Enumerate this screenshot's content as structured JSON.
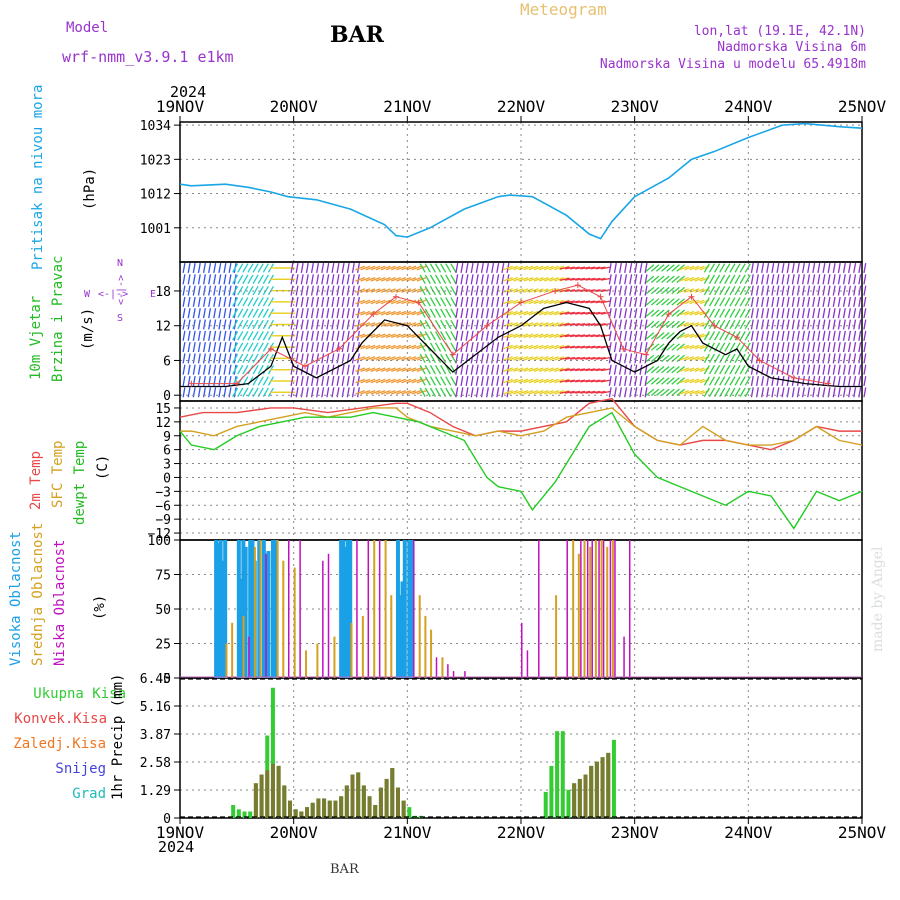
{
  "header": {
    "model_label": "Model",
    "model_name": "wrf-nmm_v3.9.1 e1km",
    "station": "BAR",
    "meteogram_label": "Meteogram",
    "location": "lon,lat (19.1E, 42.1N)",
    "elevation": "Nadmorska Visina 6m",
    "model_elevation": "Nadmorska Visina u modelu 65.4918m",
    "year_top": "2024",
    "year_bottom": "2024",
    "footer_station": "BAR",
    "credit": "made by Angel"
  },
  "colors": {
    "pressure": "#1aa6e6",
    "wind_label": "#22bb22",
    "temp2m": "#e84848",
    "sfc": "#d4a020",
    "dewpt": "#22cc22",
    "cloud_high": "#1aa0e6",
    "cloud_mid": "#d4a020",
    "cloud_low": "#c010c0",
    "total_precip": "#33cc33",
    "conv_precip": "#e84848",
    "frozen_precip": "#ee7722",
    "snow": "#4444dd",
    "graupel": "#22bbbb",
    "label_purple": "#9933cc",
    "meteogram": "#e8c070"
  },
  "chart_data": [
    {
      "type": "line",
      "panel": "pressure",
      "ylabel_a": "Pritisak na nivou mora",
      "ylabel_b": "(hPa)",
      "yticks": [
        "1001",
        "1012",
        "1023",
        "1034"
      ],
      "ylim": [
        990,
        1035
      ],
      "xticks": [
        "19NOV",
        "20NOV",
        "21NOV",
        "22NOV",
        "23NOV",
        "24NOV",
        "25NOV"
      ],
      "series": [
        {
          "x": [
            0,
            0.1,
            0.4,
            0.6,
            0.8,
            0.95,
            1.2,
            1.5,
            1.8,
            1.9,
            2.0,
            2.2,
            2.5,
            2.8,
            2.9,
            3.1,
            3.4,
            3.6,
            3.7,
            3.8,
            4.0,
            4.3,
            4.5,
            4.7,
            5.0,
            5.3,
            5.5,
            5.8,
            6.0
          ],
          "y": [
            1015,
            1014.5,
            1015,
            1014,
            1012.5,
            1011,
            1010,
            1007,
            1002,
            998.5,
            998,
            1001,
            1007,
            1011,
            1011.5,
            1011,
            1005,
            999,
            997.5,
            1003,
            1011,
            1017,
            1023,
            1025.5,
            1030,
            1034,
            1034.5,
            1033.5,
            1033
          ]
        }
      ]
    },
    {
      "type": "wind",
      "panel": "wind",
      "ylabel_a": "10m Vjetar",
      "ylabel_b": "Brzina i Pravac",
      "ylabel_c": "(m/s)",
      "compass_n": "N",
      "compass_s": "S",
      "compass_e": "E",
      "compass_w": "W",
      "compass_mark": "<-|->",
      "yticks": [
        "0",
        "6",
        "12",
        "18"
      ],
      "ylim": [
        -1,
        23
      ],
      "speed_x": [
        0,
        0.4,
        0.6,
        0.8,
        0.9,
        1.0,
        1.2,
        1.5,
        1.6,
        1.7,
        1.8,
        2.0,
        2.1,
        2.2,
        2.3,
        2.4,
        2.6,
        2.8,
        3.0,
        3.2,
        3.4,
        3.6,
        3.7,
        3.8,
        4.0,
        4.2,
        4.3,
        4.4,
        4.5,
        4.6,
        4.8,
        4.9,
        5.0,
        5.2,
        5.5,
        5.8,
        6.0
      ],
      "speed": [
        1.5,
        1.5,
        2,
        5,
        10,
        5,
        3,
        6,
        9,
        11,
        13,
        12,
        10,
        8,
        6,
        4,
        7,
        10,
        12,
        15,
        16,
        15,
        12,
        6,
        4,
        6,
        9,
        11,
        12,
        9,
        7,
        8,
        5,
        3,
        2,
        1.5,
        1.5
      ],
      "gust_x": [
        0.1,
        0.5,
        0.8,
        1.1,
        1.4,
        1.7,
        1.9,
        2.1,
        2.4,
        2.7,
        3.0,
        3.3,
        3.5,
        3.7,
        3.9,
        4.1,
        4.3,
        4.5,
        4.7,
        4.9,
        5.1,
        5.4,
        5.7
      ],
      "gust": [
        2,
        2,
        8,
        5,
        8,
        14,
        17,
        16,
        7,
        12,
        16,
        18,
        19,
        17,
        8,
        7,
        14,
        17,
        12,
        10,
        6,
        3,
        2
      ],
      "arrow_bands": [
        {
          "x0": 0.0,
          "x1": 0.45,
          "dir_deg": 80,
          "hue": "blue"
        },
        {
          "x0": 0.45,
          "x1": 0.8,
          "dir_deg": 60,
          "hue": "cyan"
        },
        {
          "x0": 0.8,
          "x1": 0.95,
          "dir_deg": 0,
          "hue": "yellow"
        },
        {
          "x0": 0.95,
          "x1": 1.55,
          "dir_deg": 260,
          "hue": "purple"
        },
        {
          "x0": 1.55,
          "x1": 2.1,
          "dir_deg": 200,
          "hue": "orange"
        },
        {
          "x0": 2.1,
          "x1": 2.4,
          "dir_deg": 120,
          "hue": "green"
        },
        {
          "x0": 2.4,
          "x1": 2.85,
          "dir_deg": 260,
          "hue": "purple"
        },
        {
          "x0": 2.85,
          "x1": 3.35,
          "dir_deg": 200,
          "hue": "yellow"
        },
        {
          "x0": 3.35,
          "x1": 3.75,
          "dir_deg": 190,
          "hue": "red"
        },
        {
          "x0": 3.75,
          "x1": 4.1,
          "dir_deg": 260,
          "hue": "purple"
        },
        {
          "x0": 4.1,
          "x1": 4.4,
          "dir_deg": 40,
          "hue": "green"
        },
        {
          "x0": 4.4,
          "x1": 4.6,
          "dir_deg": 200,
          "hue": "yellow"
        },
        {
          "x0": 4.6,
          "x1": 5.0,
          "dir_deg": 60,
          "hue": "green"
        },
        {
          "x0": 5.0,
          "x1": 6.0,
          "dir_deg": 260,
          "hue": "purple"
        }
      ]
    },
    {
      "type": "line",
      "panel": "temperature",
      "ylabel_a": "2m Temp",
      "ylabel_b": "SFC Temp",
      "ylabel_c": "dewpt Temp",
      "ylabel_d": "(C)",
      "yticks": [
        "15",
        "12",
        "9",
        "6",
        "3",
        "0",
        "−3",
        "−6",
        "−9",
        "−12"
      ],
      "ylim": [
        -13.5,
        16.5
      ],
      "series": [
        {
          "name": "2m Temp",
          "x": [
            0,
            0.2,
            0.5,
            0.8,
            1.0,
            1.3,
            1.6,
            1.9,
            2.0,
            2.2,
            2.4,
            2.6,
            2.8,
            3.0,
            3.2,
            3.4,
            3.6,
            3.8,
            3.9,
            4.0,
            4.2,
            4.4,
            4.6,
            4.8,
            5.0,
            5.2,
            5.4,
            5.6,
            5.8,
            6.0
          ],
          "y": [
            13,
            14,
            14,
            15,
            15,
            14,
            15,
            16,
            16,
            14,
            11,
            9,
            10,
            10,
            11,
            12,
            16,
            17,
            14,
            11,
            8,
            7,
            8,
            8,
            7,
            6,
            8,
            11,
            10,
            10
          ]
        },
        {
          "name": "SFC Temp",
          "x": [
            0,
            0.1,
            0.3,
            0.5,
            0.7,
            0.9,
            1.1,
            1.3,
            1.5,
            1.7,
            1.9,
            2.0,
            2.2,
            2.4,
            2.6,
            2.8,
            3.0,
            3.2,
            3.4,
            3.6,
            3.8,
            4.0,
            4.2,
            4.4,
            4.6,
            4.8,
            5.0,
            5.2,
            5.4,
            5.6,
            5.8,
            6.0
          ],
          "y": [
            10,
            10,
            9,
            11,
            12,
            13,
            14,
            13,
            14,
            15,
            15,
            13,
            11,
            10,
            9,
            10,
            9,
            10,
            13,
            14,
            15,
            11,
            8,
            7,
            11,
            8,
            7,
            7,
            8,
            11,
            8,
            7
          ]
        },
        {
          "name": "dewpt Temp",
          "x": [
            0,
            0.1,
            0.3,
            0.5,
            0.7,
            0.9,
            1.1,
            1.3,
            1.5,
            1.7,
            1.9,
            2.1,
            2.3,
            2.5,
            2.7,
            2.8,
            3.0,
            3.1,
            3.3,
            3.5,
            3.6,
            3.8,
            4.0,
            4.2,
            4.4,
            4.6,
            4.8,
            5.0,
            5.2,
            5.4,
            5.6,
            5.8,
            6.0
          ],
          "y": [
            10,
            7,
            6,
            9,
            11,
            12,
            13,
            13,
            13,
            14,
            13,
            12,
            10,
            8,
            0,
            -2,
            -3,
            -7,
            -1,
            7,
            11,
            14,
            5,
            0,
            -2,
            -4,
            -6,
            -3,
            -4,
            -11,
            -3,
            -5,
            -3
          ]
        }
      ]
    },
    {
      "type": "bar",
      "panel": "clouds",
      "ylabel_a": "Visoka Oblacnost",
      "ylabel_b": "Srednja Oblacnost",
      "ylabel_c": "Niska Oblacnost",
      "ylabel_d": "(%)",
      "yticks": [
        "0",
        "25",
        "50",
        "75",
        "100"
      ],
      "ylim": [
        0,
        100
      ],
      "series": [
        {
          "name": "Visoka Oblacnost",
          "x": [
            0.3,
            0.32,
            0.34,
            0.36,
            0.38,
            0.5,
            0.52,
            0.54,
            0.56,
            0.6,
            0.62,
            0.64,
            0.68,
            0.72,
            0.76,
            0.8,
            0.82,
            1.4,
            1.42,
            1.44,
            1.46,
            1.48,
            1.9,
            1.92,
            1.94,
            1.96,
            2.0,
            2.02
          ],
          "y": [
            100,
            98,
            100,
            85,
            100,
            100,
            72,
            100,
            95,
            100,
            100,
            85,
            100,
            100,
            92,
            100,
            100,
            100,
            100,
            95,
            100,
            100,
            100,
            60,
            70,
            100,
            100,
            100
          ]
        },
        {
          "name": "Srednja Oblacnost",
          "x": [
            0.4,
            0.45,
            0.55,
            0.65,
            0.7,
            0.85,
            0.9,
            1.0,
            1.1,
            1.2,
            1.35,
            1.5,
            1.6,
            1.7,
            1.8,
            1.85,
            2.1,
            2.15,
            2.2,
            2.3,
            3.3,
            3.45,
            3.5,
            3.55,
            3.6,
            3.65,
            3.7,
            3.75,
            3.8
          ],
          "y": [
            25,
            40,
            45,
            95,
            100,
            100,
            85,
            80,
            20,
            25,
            30,
            40,
            45,
            100,
            100,
            60,
            60,
            45,
            35,
            15,
            60,
            100,
            90,
            100,
            95,
            100,
            100,
            95,
            100
          ]
        },
        {
          "name": "Niska Oblacnost",
          "x": [
            0.6,
            0.75,
            0.95,
            1.05,
            1.25,
            1.3,
            1.55,
            1.65,
            1.75,
            2.05,
            2.25,
            2.35,
            2.4,
            2.5,
            3.0,
            3.05,
            3.15,
            3.4,
            3.52,
            3.58,
            3.62,
            3.68,
            3.72,
            3.78,
            3.82,
            3.9,
            3.95
          ],
          "y": [
            30,
            90,
            100,
            100,
            85,
            90,
            100,
            100,
            100,
            100,
            15,
            10,
            5,
            5,
            40,
            20,
            100,
            100,
            100,
            100,
            100,
            100,
            100,
            100,
            100,
            30,
            100
          ]
        }
      ]
    },
    {
      "type": "bar",
      "panel": "precip",
      "ylabel": "1hr Precip (mm)",
      "legend": [
        "Ukupna Kisa",
        "Konvek.Kisa",
        "Zaledj.Kisa",
        "Snijeg",
        "Grad"
      ],
      "yticks": [
        "0",
        "1.29",
        "2.58",
        "3.87",
        "5.16",
        "6.45"
      ],
      "ylim": [
        0,
        6.45
      ],
      "series": [
        {
          "name": "Ukupna Kisa",
          "x": [
            0.45,
            0.5,
            0.55,
            0.6,
            0.65,
            0.7,
            0.75,
            0.8,
            0.85,
            0.9,
            0.95,
            1.0,
            1.05,
            1.1,
            1.15,
            1.2,
            1.25,
            1.3,
            1.35,
            1.4,
            1.45,
            1.5,
            1.55,
            1.6,
            1.65,
            1.7,
            1.75,
            1.8,
            1.85,
            1.9,
            1.95,
            2.0,
            2.05,
            2.1,
            3.2,
            3.25,
            3.3,
            3.35,
            3.4,
            3.45,
            3.5,
            3.55,
            3.6,
            3.65,
            3.7,
            3.75,
            3.8
          ],
          "y": [
            0.6,
            0.4,
            0.3,
            0.3,
            1.6,
            2.0,
            3.8,
            6.0,
            2.4,
            1.5,
            0.8,
            0.4,
            0.3,
            0.5,
            0.7,
            0.9,
            0.9,
            0.8,
            0.8,
            1.0,
            1.5,
            2.0,
            2.1,
            1.5,
            1.0,
            0.6,
            1.4,
            1.8,
            2.3,
            1.4,
            0.8,
            0.5,
            0.1,
            0.1,
            1.2,
            2.4,
            4.0,
            4.0,
            1.3,
            1.6,
            1.8,
            2.0,
            2.4,
            2.6,
            2.8,
            3.0,
            3.6
          ]
        },
        {
          "name": "Konvek.Kisa",
          "x": [
            0.65,
            0.7,
            0.75,
            0.8,
            0.85,
            0.9,
            0.95,
            1.0,
            1.05,
            1.1,
            1.15,
            1.2,
            1.25,
            1.3,
            1.35,
            1.4,
            1.45,
            1.5,
            1.55,
            1.6,
            1.65,
            1.7,
            1.75,
            1.8,
            1.85,
            1.9,
            1.95,
            3.45,
            3.5,
            3.55,
            3.6,
            3.65,
            3.7,
            3.75
          ],
          "y": [
            1.6,
            2.0,
            2.2,
            2.5,
            2.4,
            1.5,
            0.8,
            0.4,
            0.3,
            0.5,
            0.7,
            0.9,
            0.9,
            0.8,
            0.8,
            1.0,
            1.5,
            2.0,
            2.1,
            1.5,
            1.0,
            0.6,
            1.4,
            1.8,
            2.3,
            1.4,
            0.8,
            1.6,
            1.8,
            2.0,
            2.4,
            2.6,
            2.8,
            3.0
          ]
        }
      ]
    }
  ]
}
